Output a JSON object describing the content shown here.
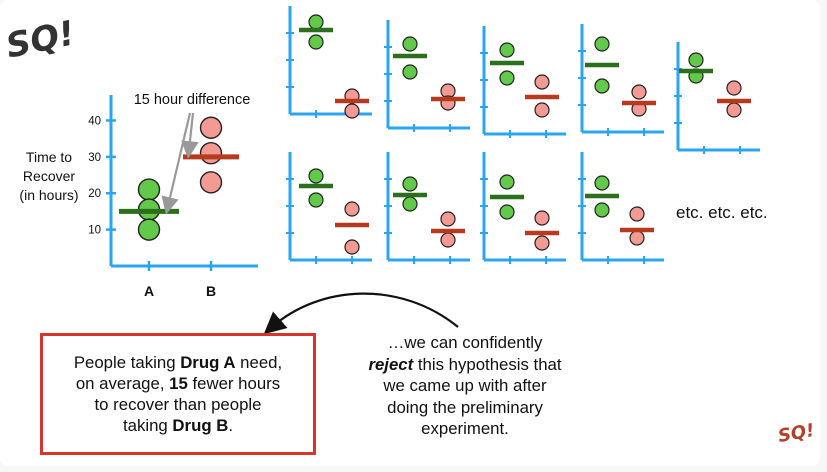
{
  "main_chart": {
    "ylabel_lines": [
      "Time to",
      "Recover",
      "(in hours)"
    ],
    "yticks": [
      10,
      20,
      30,
      40
    ],
    "categories": [
      "A",
      "B"
    ],
    "annotation": "15 hour difference"
  },
  "chart_data": {
    "type": "scatter",
    "categories": [
      "A",
      "B"
    ],
    "series": [
      {
        "name": "A",
        "points": [
          21,
          15.5,
          10
        ],
        "mean": 15
      },
      {
        "name": "B",
        "points": [
          38,
          31,
          23
        ],
        "mean": 30
      }
    ],
    "ylabel": "Time to Recover (in hours)",
    "ylim": [
      0,
      47
    ],
    "yticks": [
      10,
      20,
      30,
      40
    ],
    "annotation": "15 hour difference"
  },
  "colors": {
    "axis": "#2aa5f2",
    "green_fill": "#63c94a",
    "green_mean": "#2b6e1b",
    "red_fill": "#f49a94",
    "red_mean": "#b73a1e",
    "box_border": "#d8342c"
  },
  "box_a": {
    "line1_pre": "People taking ",
    "line1_bold": "Drug A",
    "line1_post": " need,",
    "line2_pre": "on average, ",
    "line2_bold": "15",
    "line2_post": " fewer hours",
    "line3": "to recover than people",
    "line4_pre": "taking ",
    "line4_bold": "Drug B",
    "line4_post": "."
  },
  "reject": {
    "line1": "…we can confidently",
    "line2_bold": "reject",
    "line2_post": " this hypothesis that",
    "line3": "we came up with after",
    "line4": "doing the preliminary",
    "line5": "experiment."
  },
  "etc_text": "etc. etc. etc.",
  "logo_text": "SQ!"
}
